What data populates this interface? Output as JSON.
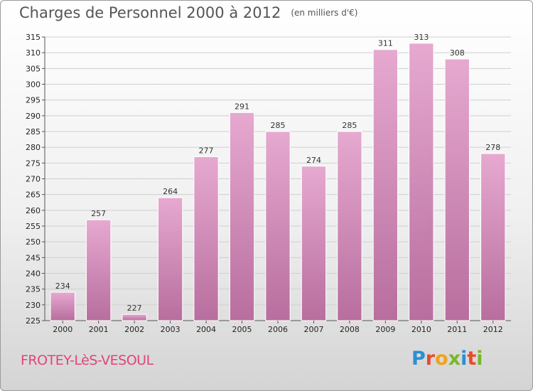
{
  "header": {
    "title": "Charges de Personnel 2000 à 2012",
    "unit": "(en milliers d'€)"
  },
  "footer": {
    "commune": "FROTEY-LèS-VESOUL",
    "logo_letters": [
      {
        "ch": "P",
        "color": "#2b8fd1"
      },
      {
        "ch": "r",
        "color": "#e94a2e"
      },
      {
        "ch": "o",
        "color": "#f2a21c"
      },
      {
        "ch": "x",
        "color": "#78b828"
      },
      {
        "ch": "i",
        "color": "#2b8fd1"
      },
      {
        "ch": "t",
        "color": "#e94a2e"
      },
      {
        "ch": "i",
        "color": "#78b828"
      }
    ]
  },
  "colors": {
    "bar": "#d98fbd",
    "bar_edge": "#ffffff",
    "grid": "#cfcfcf"
  },
  "chart_data": {
    "type": "bar",
    "title": "Charges de Personnel 2000 à 2012",
    "subtitle": "(en milliers d'€)",
    "categories": [
      "2000",
      "2001",
      "2002",
      "2003",
      "2004",
      "2005",
      "2006",
      "2007",
      "2008",
      "2009",
      "2010",
      "2011",
      "2012"
    ],
    "values": [
      234,
      257,
      227,
      264,
      277,
      291,
      285,
      274,
      285,
      311,
      313,
      308,
      278
    ],
    "ylim": [
      225,
      315
    ],
    "yticks": [
      225,
      230,
      235,
      240,
      245,
      250,
      255,
      260,
      265,
      270,
      275,
      280,
      285,
      290,
      295,
      300,
      305,
      310,
      315
    ],
    "grid": true,
    "xlabel": "",
    "ylabel": ""
  }
}
